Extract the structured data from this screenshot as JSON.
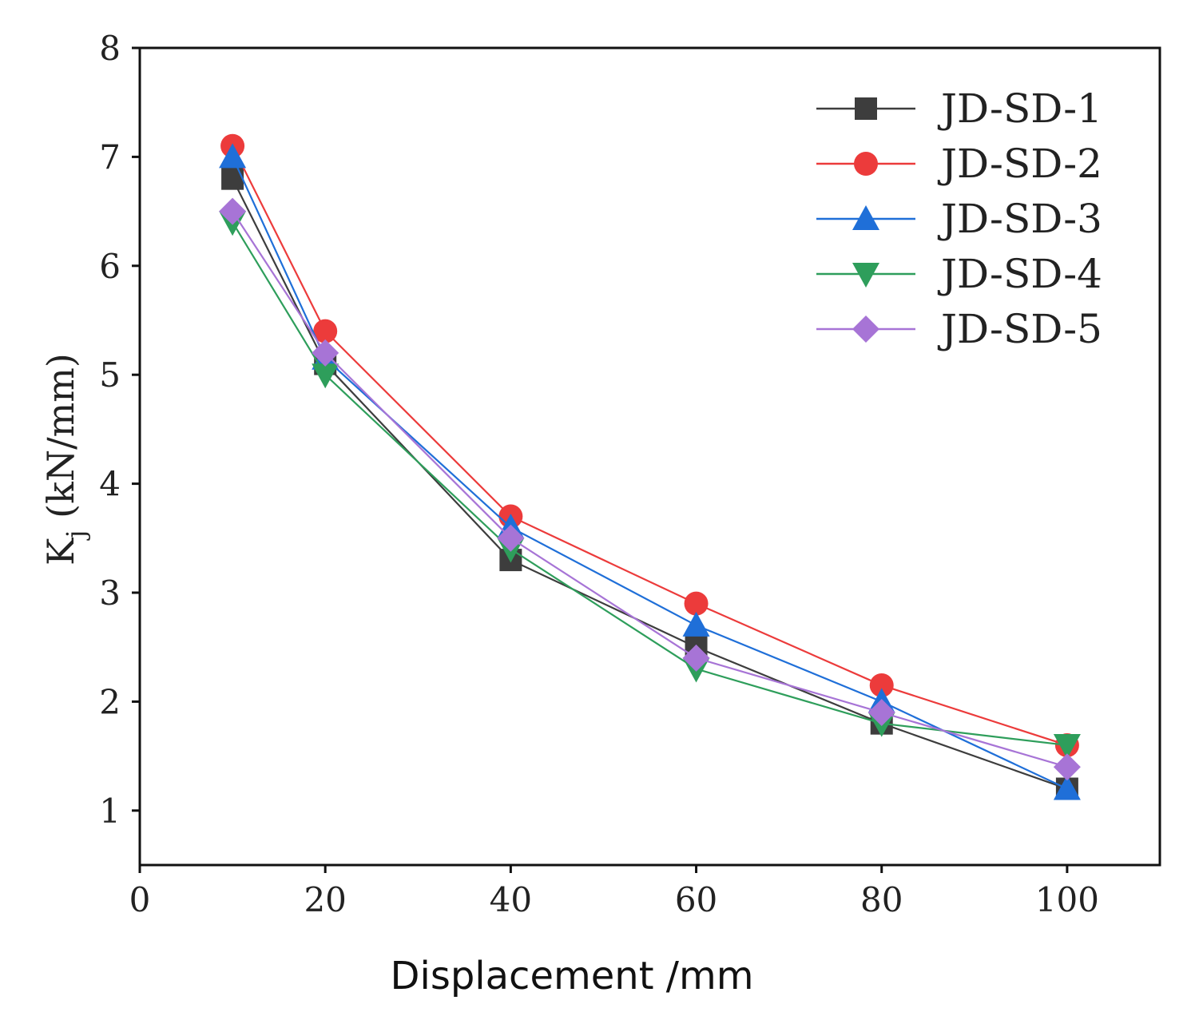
{
  "chart_data": {
    "type": "line",
    "title": "",
    "xlabel": "Displacement /mm",
    "ylabel_main": "K",
    "ylabel_sub": "j",
    "ylabel_rest": " (kN/mm)",
    "xlim": [
      0,
      110
    ],
    "ylim": [
      0.5,
      8
    ],
    "xticks": [
      0,
      20,
      40,
      60,
      80,
      100
    ],
    "yticks": [
      1,
      2,
      3,
      4,
      5,
      6,
      7,
      8
    ],
    "grid": false,
    "legend_position": "top-right",
    "x": [
      10,
      20,
      40,
      60,
      80,
      100
    ],
    "series": [
      {
        "name": "JD-SD-1",
        "color": "#3d3d3d",
        "marker": "square",
        "values": [
          6.8,
          5.1,
          3.3,
          2.5,
          1.8,
          1.2
        ]
      },
      {
        "name": "JD-SD-2",
        "color": "#ec3b3b",
        "marker": "circle",
        "values": [
          7.1,
          5.4,
          3.7,
          2.9,
          2.15,
          1.6
        ]
      },
      {
        "name": "JD-SD-3",
        "color": "#1f6fd8",
        "marker": "triangle-up",
        "values": [
          7.0,
          5.15,
          3.6,
          2.7,
          2.0,
          1.2
        ]
      },
      {
        "name": "JD-SD-4",
        "color": "#2e9e5b",
        "marker": "triangle-down",
        "values": [
          6.4,
          5.0,
          3.4,
          2.3,
          1.8,
          1.6
        ]
      },
      {
        "name": "JD-SD-5",
        "color": "#a774d6",
        "marker": "diamond",
        "values": [
          6.5,
          5.2,
          3.5,
          2.4,
          1.9,
          1.4
        ]
      }
    ]
  }
}
